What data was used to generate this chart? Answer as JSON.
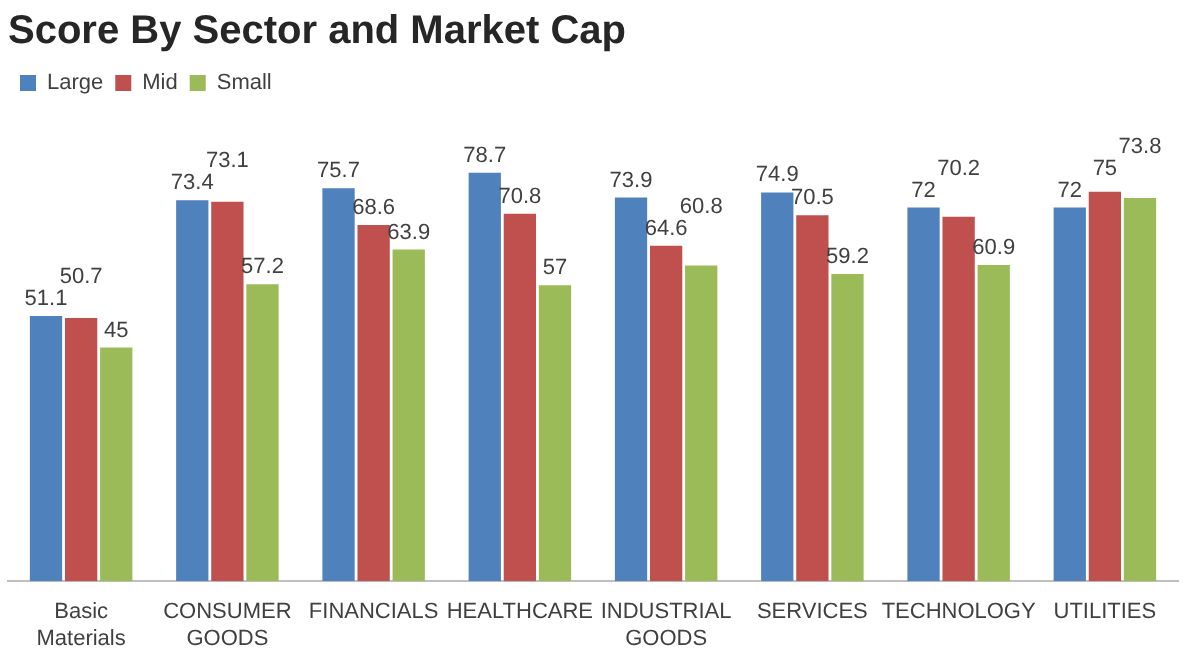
{
  "chart_data": {
    "type": "bar",
    "title": "Score By Sector and Market Cap",
    "categories": [
      "Basic Materials",
      "CONSUMER GOODS",
      "FINANCIALS",
      "HEALTHCARE",
      "INDUSTRIAL GOODS",
      "SERVICES",
      "TECHNOLOGY",
      "UTILITIES"
    ],
    "series": [
      {
        "name": "Large",
        "color": "#4f81bd",
        "values": [
          51.1,
          73.4,
          75.7,
          78.7,
          73.9,
          74.9,
          72,
          72
        ]
      },
      {
        "name": "Mid",
        "color": "#c0504d",
        "values": [
          50.7,
          73.1,
          68.6,
          70.8,
          64.6,
          70.5,
          70.2,
          75
        ]
      },
      {
        "name": "Small",
        "color": "#9bbb59",
        "values": [
          45,
          57.2,
          63.9,
          57,
          60.8,
          59.2,
          60.9,
          73.8
        ]
      }
    ],
    "data_labels": true,
    "legend": "top left",
    "grid": false,
    "tick_labels": "x"
  }
}
